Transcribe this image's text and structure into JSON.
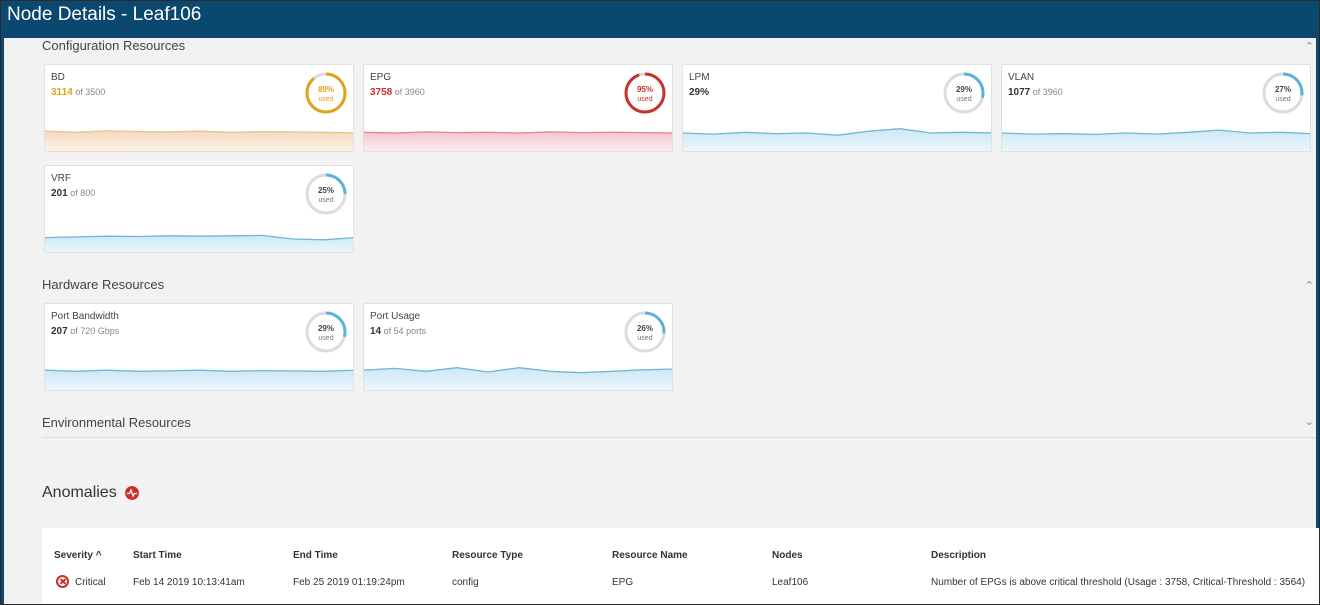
{
  "window": {
    "title": "Node Details - Leaf106"
  },
  "colors": {
    "warning": "#e0a21b",
    "critical": "#c9302c",
    "normal": "#5bb4d6"
  },
  "sections": {
    "configuration": "Configuration Resources",
    "hardware": "Hardware Resources",
    "environmental": "Environmental Resources",
    "anomalies": "Anomalies"
  },
  "config_cards": [
    {
      "name": "BD",
      "value": "3114",
      "of": "of 3500",
      "pct": "89%",
      "used": "used",
      "level": 0.89,
      "status": "warning"
    },
    {
      "name": "EPG",
      "value": "3758",
      "of": "of 3960",
      "pct": "95%",
      "used": "used",
      "level": 0.95,
      "status": "critical"
    },
    {
      "name": "LPM",
      "value": "29%",
      "of": "",
      "pct": "29%",
      "used": "used",
      "level": 0.29,
      "status": "normal"
    },
    {
      "name": "VLAN",
      "value": "1077",
      "of": "of 3960",
      "pct": "27%",
      "used": "used",
      "level": 0.27,
      "status": "normal"
    },
    {
      "name": "VRF",
      "value": "201",
      "of": "of 800",
      "pct": "25%",
      "used": "used",
      "level": 0.25,
      "status": "normal"
    }
  ],
  "hardware_cards": [
    {
      "name": "Port Bandwidth",
      "value": "207",
      "of": "of 720 Gbps",
      "pct": "29%",
      "used": "used",
      "level": 0.29,
      "status": "normal"
    },
    {
      "name": "Port Usage",
      "value": "14",
      "of": "of 54 ports",
      "pct": "26%",
      "used": "used",
      "level": 0.26,
      "status": "normal"
    }
  ],
  "anomalies_table": {
    "headers": [
      "Severity ^",
      "Start Time",
      "End Time",
      "Resource Type",
      "Resource Name",
      "Nodes",
      "Description"
    ],
    "rows": [
      [
        "Critical",
        "Feb 14 2019 10:13:41am",
        "Feb 25 2019 01:19:24pm",
        "config",
        "EPG",
        "Leaf106",
        "Number of EPGs is above critical threshold (Usage : 3758, Critical-Threshold : 3564)"
      ]
    ]
  }
}
